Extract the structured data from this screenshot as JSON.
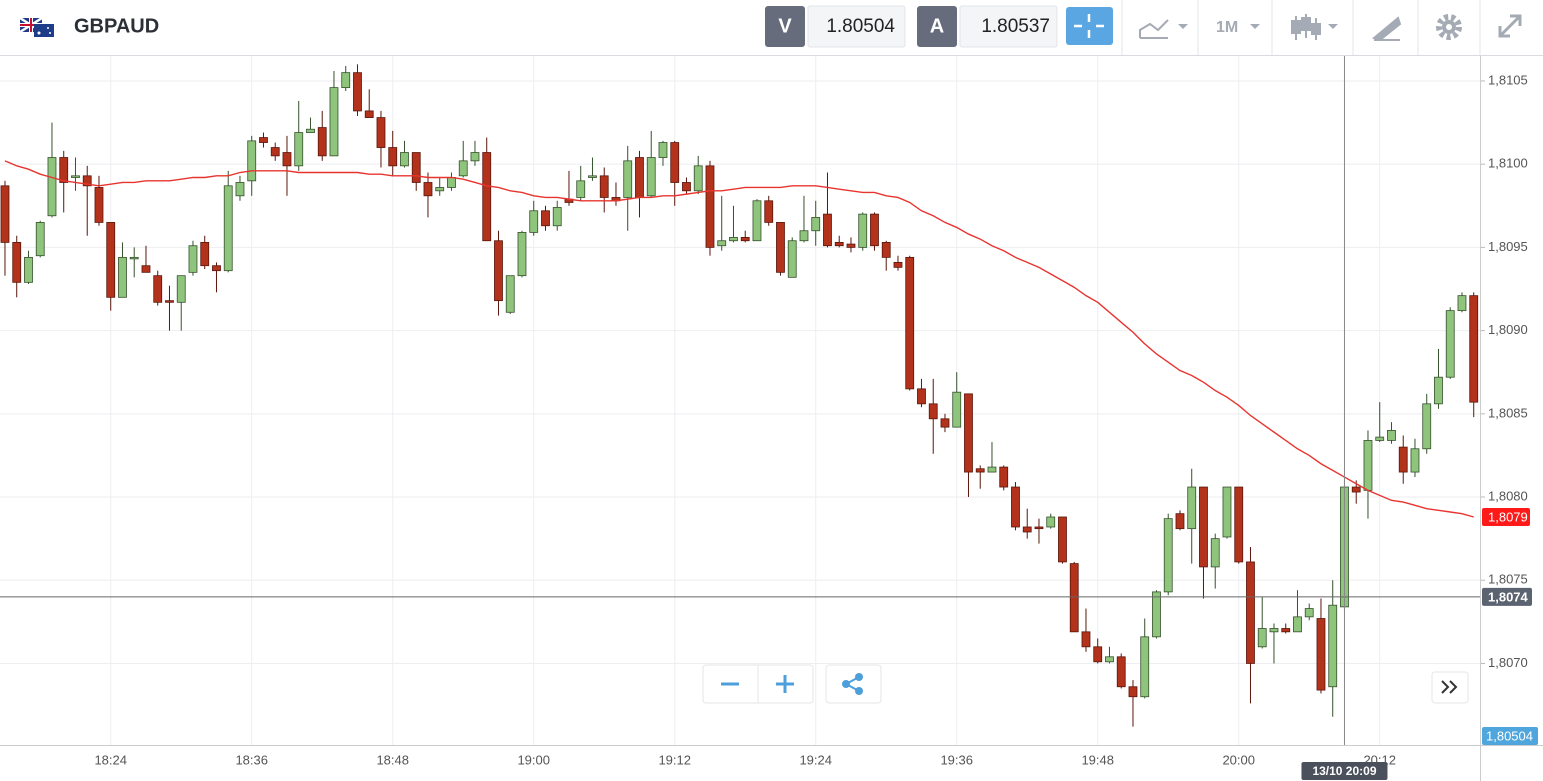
{
  "toolbar": {
    "bid_letter": "V",
    "bid": "1.80504",
    "ask_letter": "A",
    "ask": "1.80537",
    "timeframe": "1M"
  },
  "chart_data": {
    "type": "candlestick",
    "title": "GBPAUD",
    "categories": [
      null,
      null,
      null,
      null,
      null,
      null,
      null,
      null,
      null,
      "18:24",
      null,
      null,
      null,
      null,
      null,
      null,
      null,
      null,
      null,
      null,
      null,
      "18:36",
      null,
      null,
      null,
      null,
      null,
      null,
      null,
      null,
      null,
      null,
      null,
      "18:48",
      null,
      null,
      null,
      null,
      null,
      null,
      null,
      null,
      null,
      null,
      null,
      "19:00",
      null,
      null,
      null,
      null,
      null,
      null,
      null,
      null,
      null,
      null,
      null,
      "19:12",
      null,
      null,
      null,
      null,
      null,
      null,
      null,
      null,
      null,
      null,
      null,
      "19:24",
      null,
      null,
      null,
      null,
      null,
      null,
      null,
      null,
      null,
      null,
      null,
      "19:36",
      null,
      null,
      null,
      null,
      null,
      null,
      null,
      null,
      null,
      null,
      null,
      "19:48",
      null,
      null,
      null,
      null,
      null,
      null,
      null,
      null,
      null,
      null,
      null,
      "20:00",
      null,
      null,
      null,
      null,
      null,
      null,
      null,
      null,
      null,
      null,
      null,
      "20:12",
      null,
      null,
      null,
      null,
      null,
      null,
      null,
      null
    ],
    "open": [
      1.80987,
      1.80953,
      1.80929,
      1.80945,
      1.80969,
      1.81004,
      1.80992,
      1.80993,
      1.80986,
      1.80965,
      1.8092,
      1.80944,
      1.80939,
      1.80933,
      1.80918,
      1.80917,
      1.80935,
      1.80953,
      1.80939,
      1.80936,
      1.80981,
      1.8099,
      1.81016,
      1.8101,
      1.81007,
      1.80999,
      1.81019,
      1.81022,
      1.81005,
      1.81046,
      1.81055,
      1.81032,
      1.81028,
      1.8101,
      1.80999,
      1.81007,
      1.80989,
      1.80984,
      1.80986,
      1.80993,
      1.81002,
      1.81007,
      1.80954,
      1.80911,
      1.80933,
      1.80959,
      1.80972,
      1.80963,
      1.80979,
      1.8098,
      1.80992,
      1.80993,
      1.8098,
      1.8098,
      1.81004,
      1.80981,
      1.81004,
      1.81013,
      1.80989,
      1.80984,
      1.80999,
      1.80951,
      1.80954,
      1.80956,
      1.80954,
      1.80978,
      1.80965,
      1.80932,
      1.80954,
      1.8096,
      1.8097,
      1.80953,
      1.80952,
      1.8095,
      1.8097,
      1.80953,
      1.80941,
      1.80944,
      1.80865,
      1.80856,
      1.80847,
      1.80842,
      1.80862,
      1.80817,
      1.80815,
      1.80818,
      1.80806,
      1.80782,
      1.80782,
      1.80782,
      1.80788,
      1.8076,
      1.80719,
      1.8071,
      1.80701,
      1.80704,
      1.80686,
      1.8068,
      1.80716,
      1.80743,
      1.8079,
      1.80781,
      1.80806,
      1.80758,
      1.80776,
      1.80806,
      1.80761,
      1.8071,
      1.80719,
      1.80721,
      1.80719,
      1.80728,
      1.80727,
      1.80686,
      1.80734,
      1.80806,
      1.80804,
      1.80834,
      1.80834,
      1.8083,
      1.80815,
      1.80829,
      1.80856,
      1.80872,
      1.80912,
      1.80921
    ],
    "high": [
      1.8099,
      1.80957,
      1.80948,
      1.80966,
      1.81025,
      1.81008,
      1.81004,
      1.80999,
      1.80993,
      1.80965,
      1.80953,
      1.8095,
      1.80951,
      1.80936,
      1.80927,
      1.80933,
      1.80954,
      1.80957,
      1.80941,
      1.80996,
      1.80993,
      1.81017,
      1.81019,
      1.81013,
      1.81017,
      1.81038,
      1.81028,
      1.81032,
      1.81056,
      1.81059,
      1.8106,
      1.81045,
      1.81032,
      1.8102,
      1.81014,
      1.81007,
      1.80995,
      1.80992,
      1.80995,
      1.81014,
      1.81014,
      1.81016,
      1.8096,
      1.80933,
      1.8096,
      1.80978,
      1.80975,
      1.80978,
      1.80996,
      1.80999,
      1.81004,
      1.80998,
      1.80989,
      1.81011,
      1.81008,
      1.8102,
      1.81014,
      1.81014,
      1.80992,
      1.81005,
      1.81002,
      1.80981,
      1.80975,
      1.8096,
      1.80979,
      1.80981,
      1.80965,
      1.80956,
      1.80981,
      1.80978,
      1.80995,
      1.80957,
      1.80956,
      1.80971,
      1.80971,
      1.80954,
      1.80945,
      1.80945,
      1.80871,
      1.80871,
      1.8085,
      1.80875,
      1.80862,
      1.80819,
      1.80833,
      1.80819,
      1.80809,
      1.80793,
      1.80787,
      1.8079,
      1.80788,
      1.80761,
      1.80733,
      1.80715,
      1.8071,
      1.80706,
      1.8069,
      1.80727,
      1.80744,
      1.8079,
      1.80792,
      1.80817,
      1.80806,
      1.80778,
      1.80806,
      1.80806,
      1.8077,
      1.8074,
      1.80724,
      1.80724,
      1.80744,
      1.80736,
      1.80739,
      1.8075,
      1.8081,
      1.8081,
      1.8084,
      1.80857,
      1.80845,
      1.80837,
      1.80835,
      1.80862,
      1.80889,
      1.80914,
      1.80923,
      1.80923
    ],
    "low": [
      1.80933,
      1.8092,
      1.80928,
      1.80944,
      1.80968,
      1.80971,
      1.80984,
      1.80957,
      1.80963,
      1.80912,
      1.8092,
      1.80932,
      1.80935,
      1.80915,
      1.809,
      1.809,
      1.80933,
      1.80937,
      1.80923,
      1.80935,
      1.80978,
      1.80981,
      1.8101,
      1.81002,
      1.80981,
      1.80996,
      1.81019,
      1.81002,
      1.81005,
      1.81044,
      1.81029,
      1.81028,
      1.80998,
      1.80993,
      1.80998,
      1.80984,
      1.80968,
      1.80981,
      1.80984,
      1.80992,
      1.80999,
      1.80954,
      1.80909,
      1.8091,
      1.80932,
      1.80957,
      1.8096,
      1.8096,
      1.80975,
      1.80978,
      1.8099,
      1.80971,
      1.80975,
      1.8096,
      1.80968,
      1.8098,
      1.80999,
      1.80975,
      1.80982,
      1.80982,
      1.80945,
      1.80948,
      1.80953,
      1.80953,
      1.80954,
      1.80963,
      1.80933,
      1.80932,
      1.80953,
      1.80951,
      1.8095,
      1.8095,
      1.80947,
      1.80948,
      1.80948,
      1.80936,
      1.80936,
      1.80864,
      1.80854,
      1.80826,
      1.80839,
      1.80842,
      1.808,
      1.80805,
      1.80815,
      1.80804,
      1.8078,
      1.80775,
      1.80772,
      1.80781,
      1.8076,
      1.80719,
      1.80707,
      1.807,
      1.807,
      1.80685,
      1.80662,
      1.80679,
      1.80715,
      1.80741,
      1.8078,
      1.8076,
      1.80739,
      1.80745,
      1.80775,
      1.8076,
      1.80676,
      1.80709,
      1.807,
      1.80718,
      1.80719,
      1.80726,
      1.80682,
      1.80668,
      1.80732,
      1.80796,
      1.80787,
      1.80833,
      1.80832,
      1.80808,
      1.80812,
      1.80826,
      1.80853,
      1.80871,
      1.80911,
      1.80848
    ],
    "close": [
      1.80953,
      1.80929,
      1.80944,
      1.80965,
      1.81004,
      1.80989,
      1.80993,
      1.80987,
      1.80965,
      1.8092,
      1.80944,
      1.80944,
      1.80935,
      1.80917,
      1.80917,
      1.80933,
      1.80951,
      1.80939,
      1.80936,
      1.80987,
      1.80989,
      1.81014,
      1.81013,
      1.81005,
      1.80999,
      1.81019,
      1.81021,
      1.81005,
      1.81046,
      1.81055,
      1.81032,
      1.81028,
      1.8101,
      1.80999,
      1.81007,
      1.80989,
      1.80981,
      1.80986,
      1.80992,
      1.81002,
      1.81007,
      1.80954,
      1.80918,
      1.80933,
      1.80959,
      1.80972,
      1.80963,
      1.80974,
      1.80977,
      1.8099,
      1.80993,
      1.8098,
      1.80978,
      1.81002,
      1.8098,
      1.81004,
      1.81013,
      1.80989,
      1.80984,
      1.80999,
      1.8095,
      1.80954,
      1.80956,
      1.80954,
      1.80978,
      1.80965,
      1.80935,
      1.80954,
      1.8096,
      1.80968,
      1.80951,
      1.80951,
      1.8095,
      1.8097,
      1.80951,
      1.80944,
      1.80938,
      1.80865,
      1.80856,
      1.80847,
      1.80842,
      1.80863,
      1.80815,
      1.80815,
      1.80818,
      1.80806,
      1.80782,
      1.80779,
      1.80781,
      1.80788,
      1.80761,
      1.80719,
      1.8071,
      1.80701,
      1.80704,
      1.80686,
      1.8068,
      1.80716,
      1.80743,
      1.80787,
      1.80781,
      1.80806,
      1.80758,
      1.80775,
      1.80806,
      1.80761,
      1.807,
      1.80721,
      1.80721,
      1.80719,
      1.80728,
      1.80733,
      1.80684,
      1.80735,
      1.80806,
      1.80803,
      1.80834,
      1.80836,
      1.8084,
      1.80815,
      1.80829,
      1.80856,
      1.80872,
      1.80912,
      1.80921,
      1.80857
    ],
    "up_color": "#8fc47d",
    "down_color": "#b3321b",
    "ma": {
      "color": "#e8342f",
      "last_label": "1,8079",
      "values": [
        1.81002,
        1.80999,
        1.80997,
        1.80994,
        1.80992,
        1.8099,
        1.80989,
        1.80988,
        1.80987,
        1.80988,
        1.80989,
        1.80989,
        1.8099,
        1.8099,
        1.8099,
        1.80991,
        1.80992,
        1.80992,
        1.80993,
        1.80993,
        1.80995,
        1.80996,
        1.80996,
        1.80996,
        1.80996,
        1.80995,
        1.80995,
        1.80995,
        1.80995,
        1.80995,
        1.80995,
        1.80994,
        1.80994,
        1.80993,
        1.80993,
        1.80993,
        1.80992,
        1.80992,
        1.80992,
        1.80991,
        1.80989,
        1.80987,
        1.80986,
        1.80984,
        1.80983,
        1.80981,
        1.8098,
        1.8098,
        1.80979,
        1.80978,
        1.80978,
        1.80978,
        1.80978,
        1.80979,
        1.8098,
        1.8098,
        1.80981,
        1.80981,
        1.80982,
        1.80983,
        1.80984,
        1.80984,
        1.80985,
        1.80986,
        1.80986,
        1.80986,
        1.80986,
        1.80987,
        1.80987,
        1.80987,
        1.80986,
        1.80985,
        1.80984,
        1.80983,
        1.80983,
        1.80981,
        1.8098,
        1.80977,
        1.80972,
        1.80969,
        1.80965,
        1.80962,
        1.80958,
        1.80955,
        1.80951,
        1.80948,
        1.80944,
        1.80941,
        1.80938,
        1.80934,
        1.8093,
        1.80926,
        1.80921,
        1.80917,
        1.80911,
        1.80905,
        1.80899,
        1.80892,
        1.80886,
        1.80881,
        1.80876,
        1.80873,
        1.80869,
        1.80864,
        1.8086,
        1.80855,
        1.80849,
        1.80844,
        1.80839,
        1.80834,
        1.80829,
        1.80825,
        1.8082,
        1.80816,
        1.80812,
        1.80808,
        1.80804,
        1.80801,
        1.80798,
        1.80797,
        1.80795,
        1.80793,
        1.80792,
        1.80791,
        1.8079,
        1.80788
      ]
    },
    "ylim": [
      1.80651,
      1.81065
    ],
    "yticks": [
      {
        "value": 1.807,
        "label": "1,8070"
      },
      {
        "value": 1.8075,
        "label": "1,8075"
      },
      {
        "value": 1.808,
        "label": "1,8080"
      },
      {
        "value": 1.8085,
        "label": "1,8085"
      },
      {
        "value": 1.809,
        "label": "1,8090"
      },
      {
        "value": 1.8095,
        "label": "1,8095"
      },
      {
        "value": 1.81,
        "label": "1,8100"
      },
      {
        "value": 1.8105,
        "label": "1,8105"
      }
    ],
    "grid": true,
    "crosshair": {
      "price": 1.8074,
      "price_label": "1,8074",
      "time_label": "13/10 20:09"
    },
    "bid_label": "1,80504"
  }
}
